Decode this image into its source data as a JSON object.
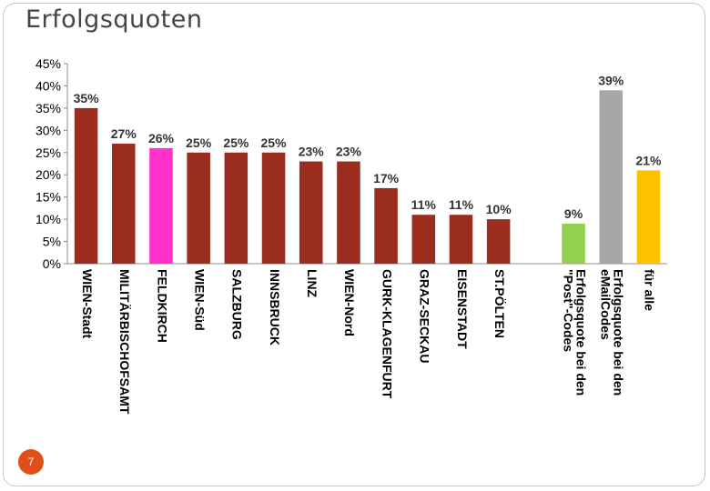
{
  "slide": {
    "title": "Erfolgsquoten",
    "page_number": "7"
  },
  "chart_data": {
    "type": "bar",
    "title": "Erfolgsquoten",
    "xlabel": "",
    "ylabel": "",
    "ylim": [
      0,
      45
    ],
    "yticks": [
      "0%",
      "5%",
      "10%",
      "15%",
      "20%",
      "25%",
      "30%",
      "35%",
      "40%",
      "45%"
    ],
    "grid": false,
    "legend": "none",
    "bars": [
      {
        "category": [
          "WIEN-Stadt"
        ],
        "value": 35,
        "label": "35%",
        "color": "#9b2d1f"
      },
      {
        "category": [
          "MILITÄRBISCHOFSAMT"
        ],
        "value": 27,
        "label": "27%",
        "color": "#9b2d1f"
      },
      {
        "category": [
          "FELDKIRCH"
        ],
        "value": 26,
        "label": "26%",
        "color": "#ff33cc"
      },
      {
        "category": [
          "WIEN-Süd"
        ],
        "value": 25,
        "label": "25%",
        "color": "#9b2d1f"
      },
      {
        "category": [
          "SALZBURG"
        ],
        "value": 25,
        "label": "25%",
        "color": "#9b2d1f"
      },
      {
        "category": [
          "INNSBRUCK"
        ],
        "value": 25,
        "label": "25%",
        "color": "#9b2d1f"
      },
      {
        "category": [
          "LINZ"
        ],
        "value": 23,
        "label": "23%",
        "color": "#9b2d1f"
      },
      {
        "category": [
          "WIEN-Nord"
        ],
        "value": 23,
        "label": "23%",
        "color": "#9b2d1f"
      },
      {
        "category": [
          "GURK-KLAGENFURT"
        ],
        "value": 17,
        "label": "17%",
        "color": "#9b2d1f"
      },
      {
        "category": [
          "GRAZ-SECKAU"
        ],
        "value": 11,
        "label": "11%",
        "color": "#9b2d1f"
      },
      {
        "category": [
          "EISENSTADT"
        ],
        "value": 11,
        "label": "11%",
        "color": "#9b2d1f"
      },
      {
        "category": [
          "ST.PÖLTEN"
        ],
        "value": 10,
        "label": "10%",
        "color": "#9b2d1f"
      },
      {
        "category": [
          ""
        ],
        "value": null,
        "label": "",
        "color": ""
      },
      {
        "category": [
          "Erfolgsquote bei den",
          "\"Post\"-Codes"
        ],
        "value": 9,
        "label": "9%",
        "color": "#92d050"
      },
      {
        "category": [
          "Erfolgsquote bei den",
          "eMailCodes"
        ],
        "value": 39,
        "label": "39%",
        "color": "#a6a6a6"
      },
      {
        "category": [
          "für alle"
        ],
        "value": 21,
        "label": "21%",
        "color": "#ffc000"
      }
    ]
  }
}
